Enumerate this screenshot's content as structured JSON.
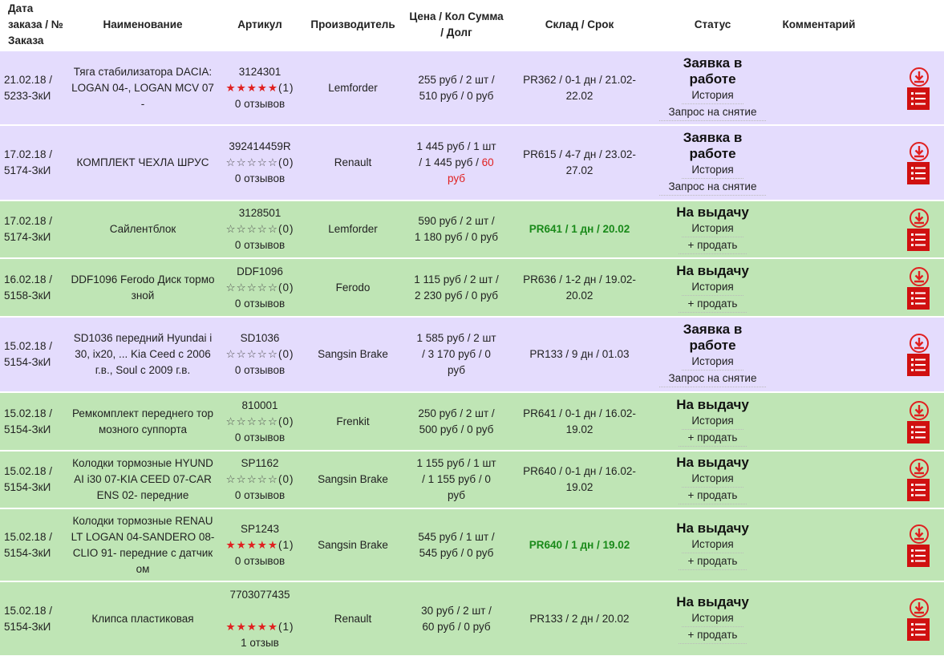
{
  "table": {
    "header": [
      "Дата заказа / № Заказа",
      "Наименование",
      "Артикул",
      "Производитель",
      "Цена / Кол Сумма / Долг",
      "Склад / Срок",
      "Статус",
      "Комментарий"
    ],
    "rows": [
      {
        "style": "purple",
        "date": "21.02.18 /",
        "order": "5233-ЗкИ",
        "name": "Тяга стабилизатора DACIA: LOGAN 04-, LOGAN MCV 07-",
        "article": "3124301",
        "rating": 5,
        "votes": "(1)",
        "reviews": "0 отзывов",
        "maker": "Lemforder",
        "price": "255 руб / 2 шт / 510 руб / ",
        "debt": "0 руб",
        "debt_red": false,
        "stock": "PR362 / 0-1 дн / 21.02-22.02",
        "stock_bold": false,
        "status": "Заявка в работе",
        "links": [
          "История",
          "Запрос на снятие"
        ]
      },
      {
        "style": "purple",
        "date": "17.02.18 /",
        "order": "5174-ЗкИ",
        "name": "КОМПЛЕКТ ЧЕХЛА ШРУС",
        "article": "392414459R",
        "rating": 0,
        "votes": "(0)",
        "reviews": "0 отзывов",
        "maker": "Renault",
        "price": "1 445 руб / 1 шт / 1 445 руб / ",
        "debt": "60 руб",
        "debt_red": true,
        "stock": "PR615 / 4-7 дн / 23.02-27.02",
        "stock_bold": false,
        "status": "Заявка в работе",
        "links": [
          "История",
          "Запрос на снятие"
        ]
      },
      {
        "style": "green",
        "date": "17.02.18 /",
        "order": "5174-ЗкИ",
        "name": "Сайлентблок",
        "article": "3128501",
        "rating": 0,
        "votes": "(0)",
        "reviews": "0 отзывов",
        "maker": "Lemforder",
        "price": "590 руб / 2 шт / 1 180 руб / ",
        "debt": "0 руб",
        "debt_red": false,
        "stock": "PR641 / 1 дн / 20.02",
        "stock_bold": true,
        "status": "На выдачу",
        "links": [
          "История",
          "+ продать"
        ]
      },
      {
        "style": "green",
        "date": "16.02.18 /",
        "order": "5158-ЗкИ",
        "name": "DDF1096 Ferodo Диск тормозной",
        "article": "DDF1096",
        "rating": 0,
        "votes": "(0)",
        "reviews": "0 отзывов",
        "maker": "Ferodo",
        "price": "1 115 руб / 2 шт / 2 230 руб / ",
        "debt": "0 руб",
        "debt_red": false,
        "stock": "PR636 / 1-2 дн / 19.02-20.02",
        "stock_bold": false,
        "status": "На выдачу",
        "links": [
          "История",
          "+ продать"
        ]
      },
      {
        "style": "purple",
        "date": "15.02.18 /",
        "order": "5154-ЗкИ",
        "name": "SD1036 передний Hyundai i30, ix20, ... Kia Ceed с 2006 г.в., Soul с 2009 г.в.",
        "article": "SD1036",
        "rating": 0,
        "votes": "(0)",
        "reviews": "0 отзывов",
        "maker": "Sangsin Brake",
        "price": "1 585 руб / 2 шт / 3 170 руб / ",
        "debt": "0 руб",
        "debt_red": false,
        "stock": "PR133 / 9 дн / 01.03",
        "stock_bold": false,
        "status": "Заявка в работе",
        "links": [
          "История",
          "Запрос на снятие"
        ]
      },
      {
        "style": "green",
        "date": "15.02.18 /",
        "order": "5154-ЗкИ",
        "name": "Ремкомплект переднего тормозного суппорта",
        "article": "810001",
        "rating": 0,
        "votes": "(0)",
        "reviews": "0 отзывов",
        "maker": "Frenkit",
        "price": "250 руб / 2 шт / 500 руб / ",
        "debt": "0 руб",
        "debt_red": false,
        "stock": "PR641 / 0-1 дн / 16.02-19.02",
        "stock_bold": false,
        "status": "На выдачу",
        "links": [
          "История",
          "+ продать"
        ]
      },
      {
        "style": "green",
        "date": "15.02.18 /",
        "order": "5154-ЗкИ",
        "name": "Колодки тормозные HYUNDAI i30 07-KIA CEED 07-CARENS 02- передние",
        "article": "SP1162",
        "rating": 0,
        "votes": "(0)",
        "reviews": "0 отзывов",
        "maker": "Sangsin Brake",
        "price": "1 155 руб / 1 шт / 1 155 руб / ",
        "debt": "0 руб",
        "debt_red": false,
        "stock": "PR640 / 0-1 дн / 16.02-19.02",
        "stock_bold": false,
        "status": "На выдачу",
        "links": [
          "История",
          "+ продать"
        ]
      },
      {
        "style": "green",
        "date": "15.02.18 /",
        "order": "5154-ЗкИ",
        "name": "Колодки тормозные RENAULT LOGAN 04-SANDERO 08-CLIO 91- передние с датчиком",
        "article": "SP1243",
        "rating": 5,
        "votes": "(1)",
        "reviews": "0 отзывов",
        "maker": "Sangsin Brake",
        "price": "545 руб / 1 шт / 545 руб / ",
        "debt": "0 руб",
        "debt_red": false,
        "stock": "PR640 / 1 дн / 19.02",
        "stock_bold": true,
        "status": "На выдачу",
        "links": [
          "История",
          "+ продать"
        ]
      },
      {
        "style": "green",
        "date": "15.02.18 /",
        "order": "5154-ЗкИ",
        "name": "Клипса пластиковая",
        "article": "7703077435",
        "rating": 5,
        "votes": "(1)",
        "reviews": "1 отзыв",
        "maker": "Renault",
        "price": "30 руб / 2 шт / 60 руб / ",
        "debt": "0 руб",
        "debt_red": false,
        "stock": "PR133 / 2 дн / 20.02",
        "stock_bold": false,
        "status": "На выдачу",
        "links": [
          "История",
          "+ продать"
        ]
      }
    ]
  }
}
